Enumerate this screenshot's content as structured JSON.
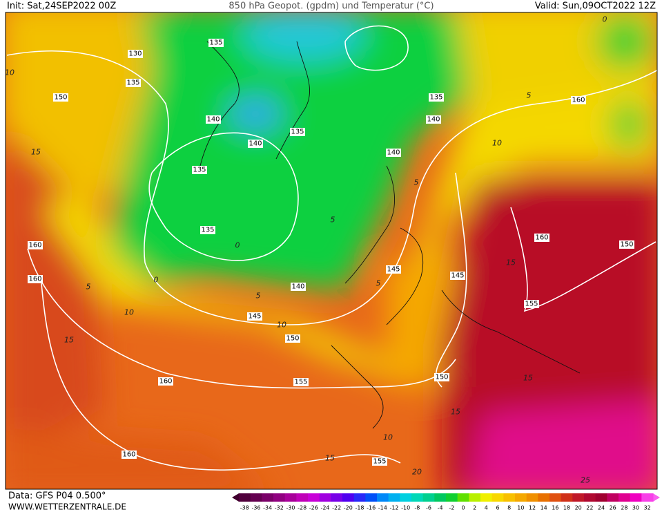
{
  "header": {
    "init": "Init: Sat,24SEP2022 00Z",
    "title": "850 hPa Geopot. (gpdm) und Temperatur (°C)",
    "valid": "Valid: Sun,09OCT2022 12Z"
  },
  "footer": {
    "data": "Data: GFS P04 0.500°",
    "site": "WWW.WETTERZENTRALE.DE"
  },
  "geopotential_labels": [
    130,
    135,
    135,
    150,
    140,
    135,
    140,
    135,
    135,
    140,
    140,
    160,
    135,
    160,
    160,
    140,
    145,
    145,
    145,
    150,
    155,
    160,
    160,
    155,
    150,
    155,
    160,
    150
  ],
  "temperature_labels": [
    10,
    15,
    5,
    0,
    5,
    10,
    5,
    15,
    10,
    5,
    10,
    5,
    15,
    15,
    15,
    10,
    20,
    15,
    25,
    0,
    0,
    5
  ],
  "colorbar": {
    "ticks": [
      -38,
      -36,
      -34,
      -32,
      -30,
      -28,
      -26,
      -24,
      -22,
      -20,
      -18,
      -16,
      -14,
      -12,
      -10,
      -8,
      -6,
      -4,
      -2,
      0,
      2,
      4,
      6,
      8,
      10,
      12,
      14,
      16,
      18,
      20,
      22,
      24,
      26,
      28,
      30,
      32
    ],
    "colors": [
      "#50003c",
      "#640050",
      "#7a0068",
      "#900080",
      "#a8009a",
      "#c000b8",
      "#c800d8",
      "#a000e0",
      "#7800e8",
      "#5000f0",
      "#2828f8",
      "#0050f8",
      "#0088f8",
      "#00b0f0",
      "#00d0e0",
      "#00d8b8",
      "#00d090",
      "#00c860",
      "#10d030",
      "#60e000",
      "#b8f000",
      "#f0f000",
      "#f8d800",
      "#f8c000",
      "#f5a800",
      "#f09000",
      "#e87000",
      "#e05010",
      "#d03018",
      "#c01828",
      "#b00830",
      "#a00030",
      "#c00060",
      "#e00090",
      "#f000c0",
      "#f840e8"
    ]
  }
}
